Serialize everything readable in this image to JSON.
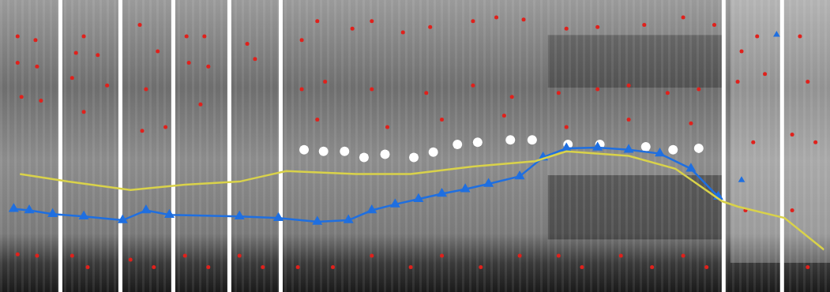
{
  "chart_data": {
    "type": "scatter",
    "xlim": [
      0,
      1051
    ],
    "ylim": [
      370,
      0
    ],
    "xticks": [
      0,
      1051
    ],
    "yticks": [
      370,
      0
    ],
    "grid": false,
    "tick_labels": false,
    "separators": [
      70,
      147,
      215,
      287,
      353,
      922,
      997
    ],
    "series": [
      {
        "type": "line",
        "color": "#d9d24a",
        "marker": "none",
        "line_style": "solid",
        "x": [
          18,
          80,
          160,
          230,
          300,
          330,
          360,
          450,
          520,
          600,
          680,
          720,
          800,
          860,
          920,
          940,
          1000,
          1051
        ],
        "values": [
          222,
          232,
          243,
          236,
          232,
          225,
          218,
          222,
          222,
          212,
          205,
          192,
          198,
          215,
          258,
          265,
          280,
          322
        ]
      },
      {
        "type": "line",
        "color": "#1f6fe0",
        "marker": "triangle",
        "line_style": "solid",
        "x": [
          10,
          30,
          60,
          100,
          150,
          180,
          210,
          300,
          350,
          400,
          440,
          470,
          500,
          530,
          560,
          590,
          620,
          660,
          690,
          720,
          760,
          800,
          840,
          880,
          915
        ],
        "values": [
          268,
          270,
          275,
          278,
          283,
          270,
          276,
          278,
          280,
          285,
          283,
          270,
          262,
          255,
          248,
          242,
          235,
          225,
          200,
          188,
          187,
          190,
          195,
          215,
          252
        ]
      },
      {
        "type": "scatter",
        "color": "#1f6fe0",
        "marker": "triangle",
        "x": [
          945,
          990
        ],
        "values": [
          230,
          38
        ]
      },
      {
        "type": "scatter",
        "color": "#ffffff",
        "marker": "circle",
        "x": [
          383,
          408,
          435,
          460,
          487,
          524,
          549,
          580,
          606,
          648,
          676,
          722,
          763,
          822,
          857,
          890
        ],
        "values": [
          190,
          192,
          192,
          200,
          196,
          200,
          193,
          183,
          180,
          177,
          177,
          183,
          183,
          186,
          190,
          188
        ]
      },
      {
        "type": "scatter",
        "color": "#e0211c",
        "marker": "circle",
        "x": [
          15,
          38,
          90,
          100,
          118,
          172,
          195,
          232,
          255,
          310,
          380,
          400,
          445,
          470,
          510,
          545,
          600,
          630,
          665,
          720,
          760,
          820,
          870,
          910,
          945,
          965,
          1020,
          15,
          40,
          85,
          130,
          180,
          235,
          260,
          320,
          380,
          410,
          470,
          540,
          600,
          650,
          710,
          760,
          800,
          850,
          890,
          940,
          975,
          1030,
          20,
          45,
          100,
          175,
          205,
          250,
          400,
          490,
          560,
          640,
          720,
          800,
          880,
          960,
          1010,
          1040,
          15,
          40,
          85,
          105,
          160,
          190,
          230,
          260,
          300,
          330,
          375,
          420,
          470,
          520,
          560,
          610,
          660,
          710,
          740,
          790,
          830,
          870,
          900,
          950,
          1010,
          1030
        ],
        "values": [
          40,
          45,
          62,
          40,
          65,
          25,
          60,
          40,
          40,
          50,
          45,
          20,
          30,
          20,
          35,
          28,
          20,
          15,
          18,
          30,
          28,
          25,
          15,
          25,
          60,
          40,
          40,
          75,
          80,
          95,
          105,
          110,
          75,
          80,
          70,
          110,
          100,
          110,
          115,
          105,
          120,
          115,
          110,
          105,
          115,
          110,
          100,
          90,
          100,
          120,
          125,
          140,
          165,
          160,
          130,
          150,
          160,
          150,
          145,
          160,
          150,
          155,
          180,
          170,
          180,
          328,
          330,
          330,
          345,
          335,
          345,
          330,
          345,
          330,
          345,
          345,
          345,
          330,
          345,
          330,
          345,
          330,
          330,
          345,
          330,
          345,
          330,
          345,
          270,
          270,
          345
        ]
      }
    ]
  }
}
